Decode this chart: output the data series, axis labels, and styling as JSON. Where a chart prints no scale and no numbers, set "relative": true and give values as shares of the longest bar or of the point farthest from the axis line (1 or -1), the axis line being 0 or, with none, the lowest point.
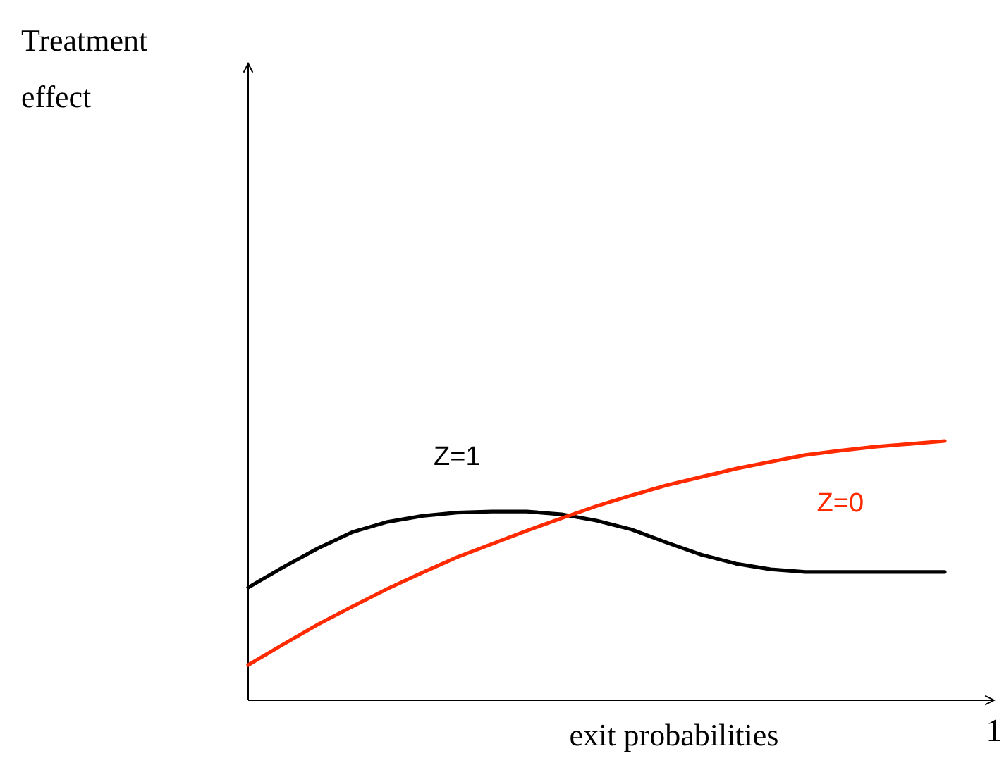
{
  "chart_data": {
    "type": "line",
    "relative": true,
    "xlabel": "exit probabilities",
    "annotations": [
      "Treatment effect",
      "1"
    ],
    "legend": false,
    "marker": "none",
    "line_style": "solid",
    "categories": [
      null,
      null,
      null,
      null,
      null,
      null,
      null,
      null,
      null,
      null,
      null,
      null,
      null,
      null,
      null,
      null,
      null,
      null,
      null,
      null,
      null
    ],
    "series": [
      {
        "name": "Z=1",
        "color": "#000000",
        "values": [
          0.435,
          0.513,
          0.586,
          0.649,
          0.688,
          0.711,
          0.724,
          0.728,
          0.728,
          0.717,
          0.693,
          0.659,
          0.609,
          0.562,
          0.527,
          0.505,
          0.495,
          0.495,
          0.495,
          0.495,
          0.495
        ]
      },
      {
        "name": "Z=0",
        "color": "#ff2a00",
        "values": [
          0.136,
          0.215,
          0.292,
          0.362,
          0.43,
          0.492,
          0.552,
          0.603,
          0.654,
          0.702,
          0.749,
          0.79,
          0.829,
          0.861,
          0.893,
          0.92,
          0.946,
          0.963,
          0.978,
          0.989,
          1
        ]
      }
    ]
  }
}
